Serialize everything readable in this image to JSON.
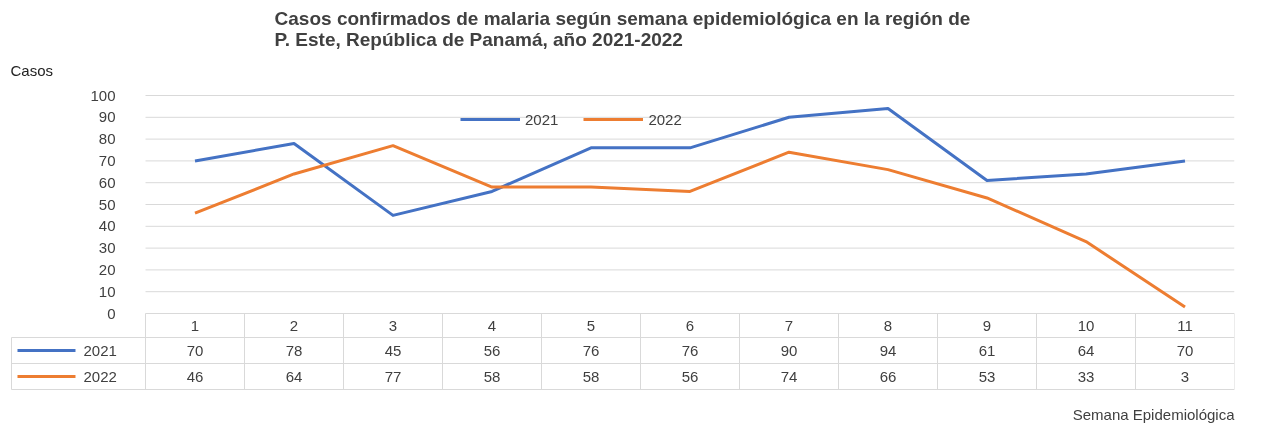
{
  "chart_data": {
    "type": "line",
    "title": "Casos confirmados de malaria según semana epidemiológica en la región de P. Este, República de Panamá, año 2021-2022",
    "ylabel": "Casos",
    "xlabel": "Semana Epidemiológica",
    "categories": [
      "1",
      "2",
      "3",
      "4",
      "5",
      "6",
      "7",
      "8",
      "9",
      "10",
      "11"
    ],
    "series": [
      {
        "name": "2021",
        "color": "#4472c4",
        "values": [
          70,
          78,
          45,
          56,
          76,
          76,
          90,
          94,
          61,
          64,
          70
        ]
      },
      {
        "name": "2022",
        "color": "#ed7d31",
        "values": [
          46,
          64,
          77,
          58,
          58,
          56,
          74,
          66,
          53,
          33,
          3
        ]
      }
    ],
    "ylim": [
      0,
      100
    ],
    "yticks": [
      0,
      10,
      20,
      30,
      40,
      50,
      60,
      70,
      80,
      90,
      100
    ],
    "grid": "y",
    "legend": "top",
    "data_labels": true,
    "marker": "none",
    "line_style": "solid"
  }
}
